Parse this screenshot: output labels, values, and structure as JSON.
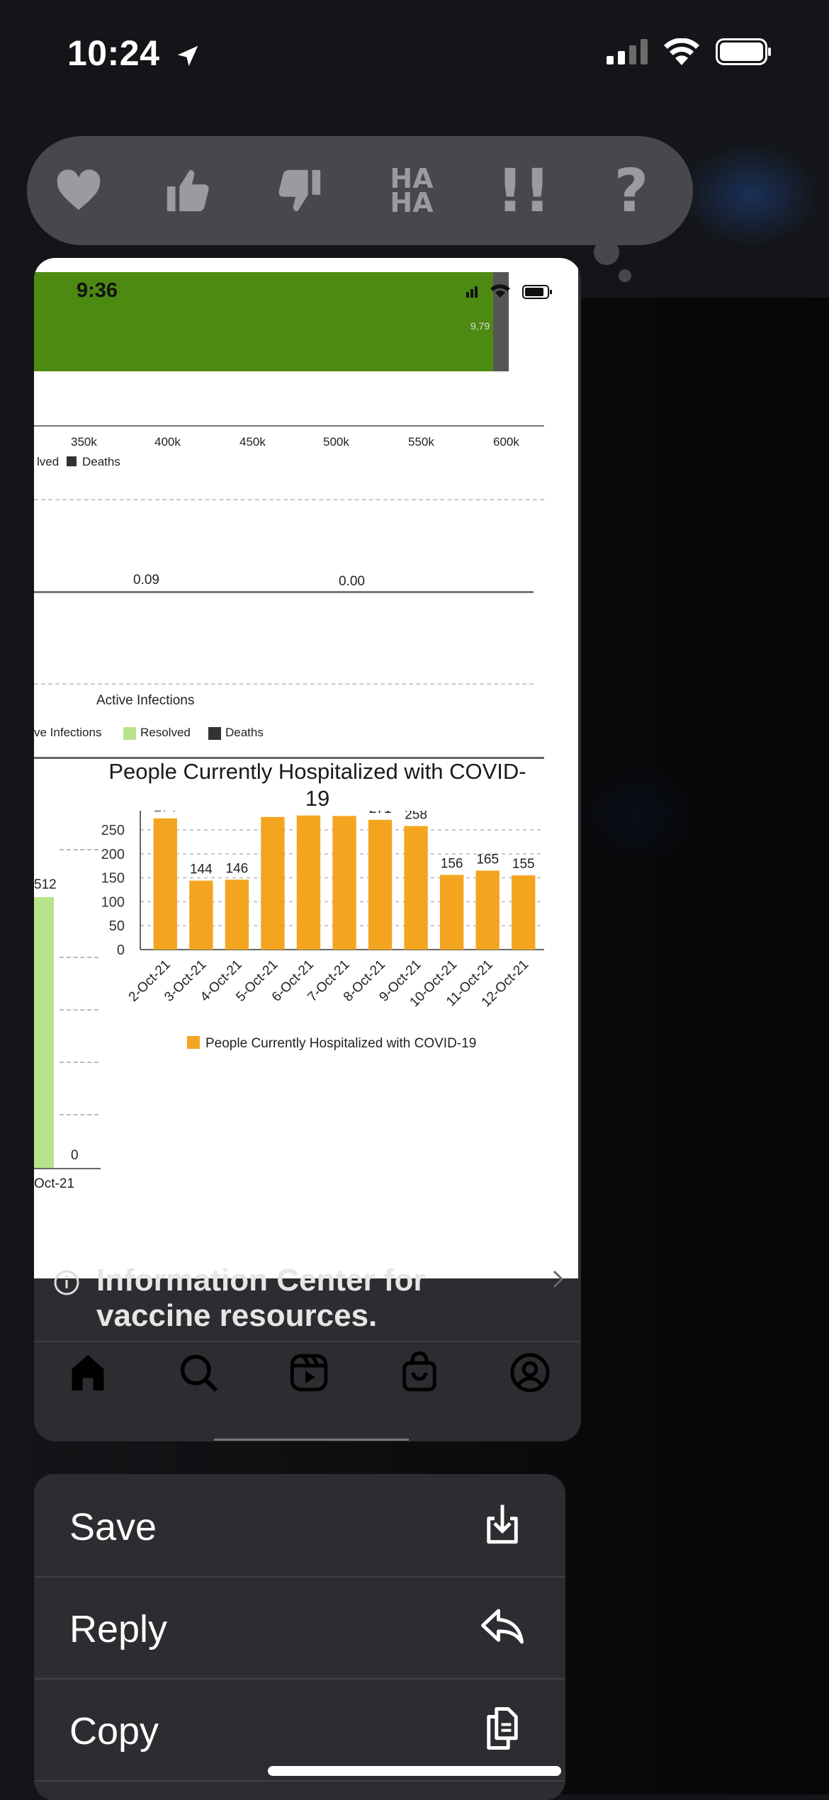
{
  "status_bar": {
    "time": "10:24"
  },
  "reactions": {
    "items": [
      {
        "name": "heart"
      },
      {
        "name": "thumbs-up"
      },
      {
        "name": "thumbs-down"
      },
      {
        "name": "haha",
        "line1": "HA",
        "line2": "HA"
      },
      {
        "name": "emphasize",
        "text": "!!"
      },
      {
        "name": "question",
        "text": "?"
      }
    ]
  },
  "screenshot": {
    "status_time": "9:36",
    "top_bar_value": "9,79",
    "top_axis": {
      "ticks": [
        "350k",
        "400k",
        "450k",
        "500k",
        "550k",
        "600k"
      ]
    },
    "top_legend": {
      "resolved_partial": "lved",
      "deaths": "Deaths"
    },
    "mid_values": [
      "0.09",
      "0.00"
    ],
    "mid_xlabel": "Active Infections",
    "mid_legend": {
      "active_partial": "ve Infections",
      "resolved": "Resolved",
      "deaths": "Deaths"
    },
    "left_chart": {
      "bar_label": "512",
      "zero_label": "0",
      "x_partial": "Oct-21"
    }
  },
  "chart_data": {
    "type": "bar",
    "title": "People Currently Hospitalized with COVID-19",
    "categories": [
      "2-Oct-21",
      "3-Oct-21",
      "4-Oct-21",
      "5-Oct-21",
      "6-Oct-21",
      "7-Oct-21",
      "8-Oct-21",
      "9-Oct-21",
      "10-Oct-21",
      "11-Oct-21",
      "12-Oct-21"
    ],
    "series": [
      {
        "name": "People Currently Hospitalized with COVID-19",
        "values": [
          274,
          144,
          146,
          277,
          280,
          279,
          271,
          258,
          156,
          165,
          155
        ],
        "color": "#f4a520"
      }
    ],
    "y_ticks": [
      "0",
      "50",
      "100",
      "150",
      "200",
      "250"
    ],
    "ylim": [
      0,
      290
    ],
    "legend": "bottom",
    "grid": true
  },
  "message_text": {
    "line1": "Information Center for",
    "line2": "vaccine resources."
  },
  "tab_bar": {
    "items": [
      "home",
      "search",
      "reels",
      "shop",
      "profile"
    ]
  },
  "menu": {
    "items": [
      {
        "label": "Save",
        "icon": "save-icon"
      },
      {
        "label": "Reply",
        "icon": "reply-icon"
      },
      {
        "label": "Copy",
        "icon": "copy-icon"
      }
    ]
  }
}
